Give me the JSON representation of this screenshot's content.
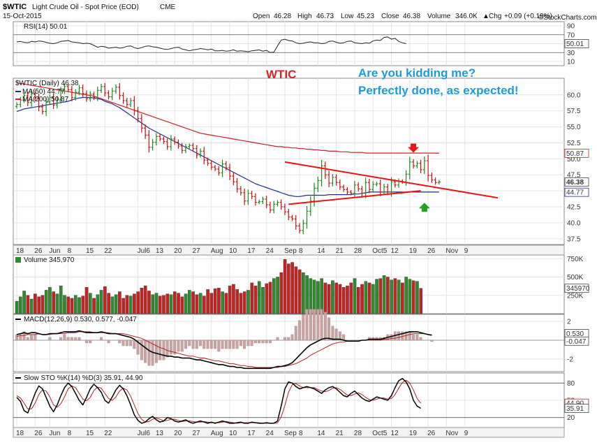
{
  "header": {
    "symbol": "$WTIC",
    "description": "Light Crude Oil - Spot Price (EOD)",
    "exchange": "CME",
    "date": "15-Oct-2015",
    "open_label": "Open",
    "open": "46.28",
    "high_label": "High",
    "high": "46.73",
    "low_label": "Low",
    "low": "45.23",
    "close_label": "Close",
    "close": "46.38",
    "volume_label": "Volume",
    "volume": "346.0K",
    "chg_label": "Chg",
    "chg": "+0.09 (+0.19%)",
    "chg_arrow": "▲",
    "watermark": "©StockCharts.com"
  },
  "annotations": {
    "title": "WTIC",
    "comment_line1": "Are you kidding me?",
    "comment_line2": "Perfectly done, as expected!",
    "title_color": "#dd2222",
    "comment_color": "#1a9be0"
  },
  "colors": {
    "up_bar": "#1d8a1d",
    "down_bar": "#cc1111",
    "ma50": "#1f2f8f",
    "ma200": "#cc2222",
    "trendline": "#ee1111",
    "grid": "#e4e4e4",
    "sto_k": "#000000",
    "sto_d": "#b22222",
    "macd": "#000000",
    "signal": "#b22222",
    "hist": "#c9a3a3"
  },
  "x_axis": {
    "labels": [
      "18",
      "26",
      "Jun",
      "8",
      "15",
      "22",
      "Jul6",
      "13",
      "20",
      "27",
      "Aug",
      "10",
      "17",
      "24",
      "Sep",
      "8",
      "14",
      "21",
      "28",
      "Oct5",
      "12",
      "19",
      "26",
      "Nov",
      "9"
    ],
    "label_indices": [
      0,
      5,
      9,
      14,
      19,
      24,
      33,
      38,
      43,
      48,
      53,
      58,
      63,
      68,
      73,
      77,
      82,
      87,
      92,
      97,
      102,
      107,
      112,
      117,
      122
    ]
  },
  "chart_data": [
    {
      "type": "line",
      "name": "rsi",
      "label": "RSI(14) 50.01",
      "value_label": "50.01",
      "ticks": [
        10,
        30,
        50,
        70,
        90
      ],
      "ylim": [
        10,
        90
      ],
      "values": [
        54,
        55,
        53,
        52,
        55,
        54,
        56,
        55,
        53,
        51,
        50,
        52,
        55,
        56,
        57,
        54,
        53,
        52,
        50,
        51,
        50,
        46,
        42,
        44,
        43,
        40,
        41,
        42,
        40,
        41,
        44,
        45,
        41,
        39,
        41,
        44,
        45,
        43,
        42,
        40,
        38,
        37,
        39,
        41,
        42,
        38,
        36,
        34,
        36,
        37,
        39,
        38,
        36,
        38,
        34,
        34,
        35,
        33,
        34,
        36,
        33,
        34,
        33,
        32,
        34,
        35,
        36,
        33,
        35,
        30,
        31,
        45,
        58,
        60,
        57,
        56,
        52,
        50,
        51,
        53,
        54,
        52,
        52,
        50,
        51,
        55,
        56,
        53,
        51,
        52,
        55,
        56,
        52,
        51,
        50,
        52,
        51,
        56,
        58,
        57,
        64,
        65,
        60,
        62,
        55,
        52,
        50
      ]
    },
    {
      "type": "ohlc",
      "name": "price",
      "label": "$WTIC (Daily) 46.38",
      "ma50_label": "MA(50) 44.77",
      "ma200_label": "MA(200) 50.87",
      "last_price_tag": "46.38",
      "ma50_tag": "44.77",
      "ma200_tag": "50.87",
      "ticks": [
        37.5,
        40.0,
        42.5,
        45.0,
        47.5,
        50.0,
        52.5,
        55.0,
        57.5,
        60.0
      ],
      "ylim": [
        36.6,
        62.6
      ],
      "close": [
        58.5,
        59.2,
        59.9,
        58.8,
        60.2,
        59.5,
        58.1,
        57.4,
        58.9,
        59.6,
        58.4,
        59.3,
        60.6,
        61.3,
        60.8,
        59.6,
        60.4,
        61.1,
        60.2,
        59.4,
        60.1,
        59.6,
        60.7,
        61.3,
        60.3,
        59.7,
        60.6,
        61.2,
        59.9,
        59.1,
        58.5,
        59.1,
        57.5,
        56.3,
        54.8,
        53.7,
        51.8,
        52.6,
        53.5,
        53.1,
        52.7,
        51.9,
        53.1,
        52.6,
        52.0,
        51.3,
        51.9,
        52.1,
        51.6,
        50.6,
        51.2,
        49.8,
        49.3,
        48.7,
        48.4,
        47.8,
        49.2,
        48.6,
        47.3,
        46.4,
        45.3,
        44.7,
        43.4,
        44.6,
        44.1,
        43.2,
        43.3,
        43.7,
        42.8,
        42.0,
        42.9,
        43.2,
        42.5,
        41.7,
        40.9,
        40.6,
        39.5,
        38.8,
        39.9,
        41.8,
        43.4,
        45.4,
        46.6,
        48.9,
        47.5,
        46.2,
        47.1,
        46.3,
        45.6,
        45.2,
        44.8,
        44.6,
        45.9,
        45.3,
        44.6,
        46.3,
        45.2,
        46.0,
        46.1,
        44.8,
        45.6,
        44.8,
        46.4,
        45.9,
        46.5,
        46.4,
        47.6,
        49.5,
        48.9,
        49.3,
        48.3,
        49.7,
        47.4,
        46.7,
        46.3,
        46.4
      ],
      "ma50": [
        57.4,
        57.6,
        57.8,
        57.9,
        58.0,
        58.1,
        58.2,
        58.3,
        58.4,
        58.5,
        58.6,
        58.7,
        58.8,
        58.9,
        59.0,
        59.2,
        59.4,
        59.5,
        59.6,
        59.6,
        59.6,
        59.5,
        59.4,
        59.3,
        59.0,
        58.8,
        58.6,
        58.3,
        58.0,
        57.6,
        57.2,
        56.8,
        56.4,
        56.0,
        55.6,
        55.2,
        54.8,
        54.5,
        54.2,
        53.9,
        53.6,
        53.3,
        53.0,
        52.7,
        52.4,
        52.1,
        51.8,
        51.5,
        51.2,
        50.9,
        50.6,
        50.3,
        50.0,
        49.7,
        49.4,
        49.1,
        48.8,
        48.5,
        48.2,
        47.9,
        47.6,
        47.3,
        47.0,
        46.7,
        46.4,
        46.1,
        45.9,
        45.7,
        45.5,
        45.3,
        45.1,
        44.9,
        44.7,
        44.5,
        44.3,
        44.2,
        44.1,
        44.1,
        44.2,
        44.3,
        44.3,
        44.3,
        44.3,
        44.3,
        44.3,
        44.4,
        44.4,
        44.4,
        44.4,
        44.4,
        44.4,
        44.4,
        44.5,
        44.5,
        44.6,
        44.7,
        44.8,
        44.8,
        44.8,
        44.8,
        44.8,
        44.8,
        44.8,
        44.8,
        44.8,
        44.8,
        44.8,
        44.8,
        44.8,
        44.8,
        44.8,
        44.8,
        44.8,
        44.8,
        44.8,
        44.8
      ],
      "ma200": [
        61.9,
        61.8,
        61.7,
        61.6,
        61.5,
        61.4,
        61.3,
        61.2,
        61.1,
        61.0,
        60.9,
        60.8,
        60.7,
        60.6,
        60.5,
        60.4,
        60.3,
        60.2,
        60.1,
        60.0,
        59.9,
        59.8,
        59.6,
        59.4,
        59.2,
        59.0,
        58.8,
        58.6,
        58.4,
        58.2,
        58.0,
        57.8,
        57.6,
        57.4,
        57.2,
        57.0,
        56.8,
        56.6,
        56.4,
        56.2,
        56.0,
        55.8,
        55.6,
        55.4,
        55.2,
        55.0,
        54.8,
        54.6,
        54.4,
        54.2,
        54.0,
        53.9,
        53.8,
        53.7,
        53.6,
        53.5,
        53.4,
        53.3,
        53.2,
        53.1,
        53.0,
        52.9,
        52.8,
        52.7,
        52.6,
        52.5,
        52.4,
        52.3,
        52.2,
        52.1,
        52.0,
        51.9,
        51.9,
        51.8,
        51.8,
        51.7,
        51.7,
        51.6,
        51.6,
        51.5,
        51.5,
        51.4,
        51.4,
        51.3,
        51.3,
        51.2,
        51.2,
        51.2,
        51.1,
        51.1,
        51.1,
        51.0,
        51.0,
        51.0,
        51.0,
        50.9,
        50.9,
        50.9,
        50.9,
        50.9,
        50.9,
        50.9,
        50.9,
        50.9,
        50.9,
        50.9,
        50.9,
        50.9,
        50.9,
        50.9,
        50.9,
        50.9,
        50.9,
        50.9,
        50.9,
        50.87
      ],
      "trendlines": [
        {
          "x": [
            73,
            131
          ],
          "y": [
            49.5,
            43.9
          ]
        },
        {
          "x": [
            74,
            110
          ],
          "y": [
            42.9,
            45.0
          ]
        }
      ],
      "markers": [
        {
          "shape": "down-arrow",
          "x": 108,
          "y": 51.3,
          "color": "#e41a1a"
        },
        {
          "shape": "up-arrow",
          "x": 111,
          "y": 42.8,
          "color": "#23a323"
        }
      ]
    },
    {
      "type": "bar",
      "name": "volume",
      "label": "Volume 345,970",
      "value_label": "345970",
      "ticks": [
        "250K",
        "500K",
        "750K"
      ],
      "tick_values": [
        250,
        500,
        750
      ],
      "ylim": [
        0,
        800
      ],
      "values": [
        170,
        230,
        310,
        250,
        200,
        270,
        230,
        250,
        320,
        360,
        300,
        270,
        380,
        250,
        230,
        210,
        250,
        220,
        240,
        360,
        280,
        210,
        260,
        320,
        370,
        280,
        230,
        260,
        300,
        210,
        250,
        240,
        270,
        300,
        350,
        380,
        310,
        260,
        280,
        240,
        250,
        270,
        260,
        300,
        280,
        230,
        270,
        320,
        300,
        260,
        280,
        240,
        330,
        280,
        340,
        350,
        300,
        280,
        380,
        400,
        330,
        280,
        300,
        320,
        420,
        380,
        440,
        360,
        410,
        430,
        480,
        500,
        560,
        740,
        680,
        700,
        640,
        600,
        560,
        520,
        480,
        460,
        440,
        480,
        420,
        400,
        450,
        420,
        400,
        360,
        380,
        420,
        480,
        360,
        400,
        440,
        420,
        400,
        470,
        480,
        520,
        500,
        460,
        480,
        460,
        420,
        500,
        470,
        450,
        440,
        346
      ]
    },
    {
      "type": "line",
      "name": "macd",
      "label": "MACD(12,26,9) 0.530, 0.577, -0.047",
      "macd_tag": "0.530",
      "hist_tag": "-0.047",
      "ticks": [
        -2,
        0,
        2
      ],
      "ylim": [
        -3.2,
        2.6
      ],
      "macd": [
        0.6,
        0.7,
        0.8,
        0.7,
        0.8,
        0.8,
        0.7,
        0.6,
        0.6,
        0.7,
        0.7,
        0.7,
        0.8,
        0.9,
        0.9,
        0.9,
        0.9,
        1.0,
        0.9,
        0.8,
        0.8,
        0.8,
        0.8,
        0.9,
        0.8,
        0.7,
        0.7,
        0.7,
        0.6,
        0.5,
        0.4,
        0.3,
        0.1,
        -0.2,
        -0.5,
        -0.8,
        -1.1,
        -1.3,
        -1.4,
        -1.5,
        -1.6,
        -1.7,
        -1.7,
        -1.8,
        -1.8,
        -1.9,
        -1.9,
        -1.9,
        -2.0,
        -2.1,
        -2.1,
        -2.2,
        -2.3,
        -2.4,
        -2.5,
        -2.6,
        -2.6,
        -2.7,
        -2.8,
        -2.8,
        -2.9,
        -2.9,
        -3.0,
        -3.0,
        -3.0,
        -3.0,
        -3.0,
        -3.0,
        -3.0,
        -3.0,
        -2.9,
        -2.8,
        -2.8,
        -2.7,
        -2.6,
        -2.4,
        -2.0,
        -1.6,
        -1.2,
        -0.8,
        -0.5,
        -0.3,
        -0.1,
        0.1,
        0.2,
        0.2,
        0.1,
        0.1,
        0.1,
        0.0,
        -0.1,
        -0.1,
        -0.1,
        -0.1,
        0.0,
        0.0,
        0.1,
        0.1,
        0.1,
        0.1,
        0.2,
        0.3,
        0.4,
        0.5,
        0.6,
        0.7,
        0.8,
        0.9,
        0.9,
        0.9,
        0.8,
        0.7,
        0.6,
        0.53
      ],
      "signal": [
        0.4,
        0.5,
        0.5,
        0.6,
        0.6,
        0.6,
        0.7,
        0.6,
        0.6,
        0.6,
        0.7,
        0.7,
        0.7,
        0.7,
        0.8,
        0.8,
        0.8,
        0.9,
        0.9,
        0.9,
        0.9,
        0.8,
        0.8,
        0.8,
        0.8,
        0.8,
        0.7,
        0.7,
        0.7,
        0.7,
        0.6,
        0.5,
        0.4,
        0.3,
        0.2,
        0.0,
        -0.2,
        -0.4,
        -0.6,
        -0.8,
        -0.9,
        -1.1,
        -1.2,
        -1.3,
        -1.4,
        -1.5,
        -1.6,
        -1.7,
        -1.7,
        -1.8,
        -1.9,
        -1.9,
        -2.0,
        -2.1,
        -2.2,
        -2.2,
        -2.3,
        -2.4,
        -2.5,
        -2.5,
        -2.6,
        -2.7,
        -2.7,
        -2.8,
        -2.8,
        -2.9,
        -2.9,
        -2.9,
        -2.9,
        -2.9,
        -2.9,
        -2.9,
        -2.8,
        -2.8,
        -2.7,
        -2.6,
        -2.5,
        -2.3,
        -2.1,
        -1.9,
        -1.6,
        -1.4,
        -1.2,
        -1.0,
        -0.8,
        -0.6,
        -0.4,
        -0.3,
        -0.2,
        -0.2,
        -0.1,
        -0.1,
        -0.1,
        -0.1,
        0.0,
        0.0,
        0.0,
        0.0,
        0.0,
        0.0,
        0.1,
        0.1,
        0.2,
        0.2,
        0.3,
        0.4,
        0.5,
        0.6,
        0.7,
        0.7,
        0.7,
        0.7,
        0.6,
        0.58
      ]
    },
    {
      "type": "line",
      "name": "stochastic",
      "label": "Slow STO %K(14) %D(3) 35.91, 44.90",
      "k_tag": "35.91",
      "d_tag": "44.90",
      "ticks": [
        20,
        50,
        80
      ],
      "ylim": [
        5,
        95
      ],
      "k": [
        55,
        48,
        32,
        28,
        45,
        62,
        75,
        70,
        55,
        40,
        30,
        42,
        58,
        72,
        80,
        74,
        62,
        50,
        42,
        55,
        70,
        78,
        72,
        64,
        50,
        45,
        56,
        68,
        76,
        70,
        58,
        42,
        25,
        15,
        10,
        12,
        18,
        22,
        16,
        12,
        14,
        20,
        18,
        14,
        12,
        14,
        16,
        12,
        10,
        12,
        14,
        12,
        10,
        12,
        10,
        12,
        14,
        12,
        10,
        10,
        11,
        12,
        10,
        10,
        12,
        11,
        10,
        10,
        11,
        10,
        10,
        14,
        40,
        70,
        82,
        80,
        74,
        70,
        72,
        74,
        72,
        70,
        66,
        62,
        68,
        72,
        74,
        70,
        64,
        58,
        56,
        62,
        66,
        60,
        54,
        50,
        48,
        52,
        56,
        54,
        52,
        50,
        58,
        72,
        84,
        88,
        82,
        70,
        50,
        40,
        36
      ],
      "d": [
        58,
        54,
        45,
        35,
        35,
        45,
        60,
        68,
        66,
        56,
        42,
        38,
        44,
        56,
        70,
        75,
        72,
        62,
        52,
        49,
        55,
        67,
        73,
        71,
        62,
        53,
        50,
        56,
        66,
        71,
        68,
        57,
        42,
        27,
        17,
        12,
        13,
        17,
        19,
        17,
        14,
        15,
        17,
        17,
        15,
        13,
        14,
        14,
        13,
        12,
        12,
        13,
        12,
        11,
        11,
        11,
        12,
        13,
        12,
        11,
        10,
        11,
        11,
        11,
        11,
        11,
        11,
        10,
        10,
        10,
        10,
        11,
        21,
        41,
        64,
        77,
        79,
        75,
        72,
        72,
        72,
        72,
        69,
        66,
        65,
        67,
        71,
        72,
        69,
        64,
        59,
        58,
        61,
        63,
        60,
        55,
        51,
        50,
        52,
        54,
        54,
        52,
        53,
        60,
        71,
        81,
        85,
        80,
        68,
        53,
        44.9
      ]
    }
  ]
}
